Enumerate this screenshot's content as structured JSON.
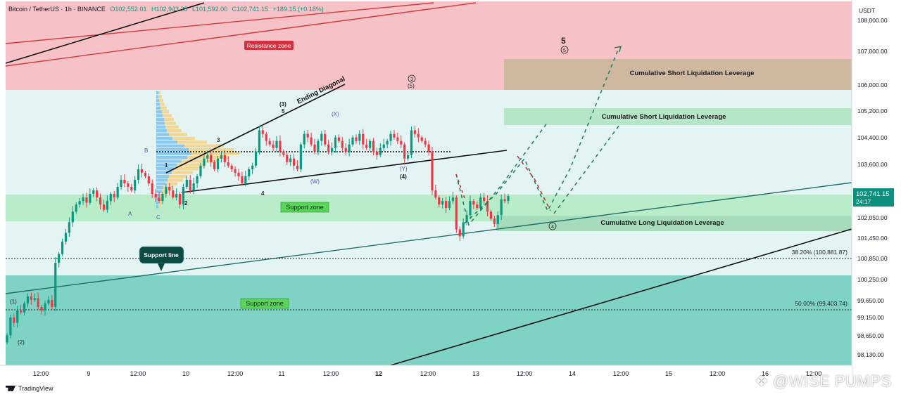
{
  "header": {
    "symbol": "Bitcoin / TetherUS · 1h · BINANCE",
    "open": "O102,552.01",
    "high": "H102,943.28",
    "low": "L101,592.00",
    "close": "C102,741.15",
    "change": "+189.15 (+0.18%)"
  },
  "axis": {
    "currency": "USDT",
    "price_labels": [
      "108,000.00",
      "107,000.00",
      "106,000.00",
      "105,200.00",
      "104,400.00",
      "103,600.00",
      "102,050.00",
      "101,450.00",
      "100,850.00",
      "100,250.00",
      "99,650.00",
      "99,150.00",
      "98,650.00",
      "98,130.00"
    ],
    "current_price": "102,741.15",
    "countdown": "24:17",
    "time_labels": [
      "12:00",
      "9",
      "12:00",
      "10",
      "12:00",
      "11",
      "12:00",
      "12",
      "12:00",
      "13",
      "12:00",
      "14",
      "12:00",
      "15",
      "12:00",
      "16",
      "12:00"
    ]
  },
  "zones": {
    "resistance": "Resistance zone",
    "support_upper": "Support zone",
    "support_lower": "Support zone",
    "support_line": "Support line",
    "short_liq_1": "Cumulative Short Liquidation Leverage",
    "short_liq_2": "Cumulative Short Liquidation Leverage",
    "long_liq": "Cumulative Long Liquidation Leverage",
    "ending_diagonal": "Ending Diagonal"
  },
  "fib": {
    "f382": "38.20% (100,881.87)",
    "f50": "50.00% (99,403.74)"
  },
  "wave_labels": {
    "w1": "(1)",
    "w2": "(2)",
    "w3": "(3)",
    "w5": "5",
    "a": "A",
    "b": "B",
    "c": "C",
    "i1": "1",
    "i2": "2",
    "i3": "3",
    "i4": "4",
    "x": "(X)",
    "wl": "(W)",
    "y": "(Y)",
    "y4": "(4)",
    "c3": "3",
    "c5": "(5)",
    "c4": "4",
    "big5": "5",
    "c5b": "5"
  },
  "chart_data": {
    "type": "candlestick",
    "symbol": "Bitcoin / TetherUS",
    "interval": "1h",
    "exchange": "BINANCE",
    "ylim": [
      97950,
      108250
    ],
    "closes": [
      98800,
      99300,
      99150,
      99500,
      99450,
      99700,
      99900,
      99800,
      99850,
      99600,
      99500,
      99700,
      99800,
      99600,
      100850,
      101100,
      101450,
      101700,
      102000,
      102300,
      102500,
      102600,
      102700,
      102550,
      102800,
      102900,
      102700,
      102500,
      102350,
      102600,
      102800,
      102700,
      103000,
      103200,
      103100,
      103000,
      102900,
      103200,
      103500,
      103400,
      103300,
      103100,
      102800,
      102700,
      102600,
      102800,
      103000,
      102900,
      102700,
      102800,
      102500,
      103000,
      103200,
      102900,
      103100,
      103300,
      103600,
      103800,
      103900,
      103700,
      103500,
      103800,
      103900,
      103700,
      103600,
      103500,
      103400,
      103300,
      103100,
      103300,
      103500,
      103600,
      104000,
      104600,
      104500,
      104300,
      104200,
      104100,
      104300,
      104000,
      103900,
      103700,
      103800,
      103600,
      103500,
      104200,
      104500,
      104400,
      104200,
      104000,
      104300,
      104500,
      104200,
      104000,
      104100,
      104400,
      104300,
      104100,
      104000,
      104200,
      104400,
      104300,
      104500,
      104200,
      104100,
      104300,
      104000,
      103900,
      104100,
      104200,
      104300,
      104500,
      104400,
      104300,
      104200,
      103800,
      103900,
      104600,
      104500,
      104400,
      104300,
      104200,
      104000,
      102900,
      102700,
      102500,
      102600,
      102400,
      102600,
      102700,
      101800,
      101600,
      102000,
      102200,
      102600,
      102500,
      102400,
      102700,
      102600,
      102300,
      102100,
      101950,
      102200,
      102650,
      102600,
      102741
    ],
    "fib_levels": [
      {
        "label": "38.20%",
        "value": 100881.87
      },
      {
        "label": "50.00%",
        "value": 99403.74
      }
    ],
    "current_price": 102741.15,
    "zones": [
      {
        "name": "Resistance zone",
        "from": 105950,
        "to": 108250
      },
      {
        "name": "Support zone",
        "from": 102050,
        "to": 102600
      },
      {
        "name": "Support zone",
        "from": 97950,
        "to": 100350
      },
      {
        "name": "Cumulative Short Liquidation Leverage",
        "from": 105950,
        "to": 106850
      },
      {
        "name": "Cumulative Short Liquidation Leverage",
        "from": 104750,
        "to": 105250
      },
      {
        "name": "Cumulative Long Liquidation Leverage",
        "from": 101850,
        "to": 102100
      }
    ],
    "grid": false
  }
}
